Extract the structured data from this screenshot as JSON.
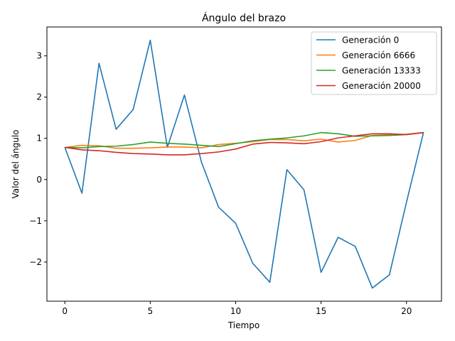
{
  "chart_data": {
    "type": "line",
    "title": "Ángulo del brazo",
    "xlabel": "Tiempo",
    "ylabel": "Valor del ángulo",
    "xlim": [
      -1.05,
      22.05
    ],
    "ylim": [
      -2.95,
      3.7
    ],
    "xticks": [
      0,
      5,
      10,
      15,
      20
    ],
    "xtick_labels": [
      "0",
      "5",
      "10",
      "15",
      "20"
    ],
    "yticks": [
      -2,
      -1,
      0,
      1,
      2,
      3
    ],
    "ytick_labels": [
      "−2",
      "−1",
      "0",
      "1",
      "2",
      "3"
    ],
    "grid": false,
    "legend_position": "top-right",
    "x": [
      0,
      1,
      2,
      3,
      4,
      5,
      6,
      7,
      8,
      9,
      10,
      11,
      12,
      13,
      14,
      15,
      16,
      17,
      18,
      19,
      20,
      21
    ],
    "series": [
      {
        "name": "Generación 0",
        "color": "#1f77b4",
        "values": [
          0.78,
          -0.33,
          2.82,
          1.22,
          1.7,
          3.38,
          0.78,
          2.05,
          0.42,
          -0.67,
          -1.06,
          -2.03,
          -2.49,
          0.24,
          -0.25,
          -2.25,
          -1.4,
          -1.62,
          -2.63,
          -2.31,
          -0.55,
          1.15
        ]
      },
      {
        "name": "Generación 6666",
        "color": "#ff7f0e",
        "values": [
          0.78,
          0.83,
          0.82,
          0.76,
          0.76,
          0.77,
          0.79,
          0.79,
          0.77,
          0.85,
          0.88,
          0.92,
          0.97,
          0.97,
          0.94,
          0.98,
          0.91,
          0.95,
          1.07,
          1.09,
          1.1,
          1.14
        ]
      },
      {
        "name": "Generación 13333",
        "color": "#2ca02c",
        "values": [
          0.78,
          0.77,
          0.8,
          0.81,
          0.85,
          0.91,
          0.88,
          0.86,
          0.83,
          0.8,
          0.87,
          0.94,
          0.98,
          1.01,
          1.06,
          1.14,
          1.11,
          1.05,
          1.06,
          1.07,
          1.09,
          1.14
        ]
      },
      {
        "name": "Generación 20000",
        "color": "#d62728",
        "values": [
          0.78,
          0.72,
          0.7,
          0.66,
          0.63,
          0.62,
          0.6,
          0.6,
          0.63,
          0.67,
          0.74,
          0.86,
          0.9,
          0.89,
          0.87,
          0.92,
          1.01,
          1.06,
          1.11,
          1.11,
          1.09,
          1.14
        ]
      }
    ]
  }
}
